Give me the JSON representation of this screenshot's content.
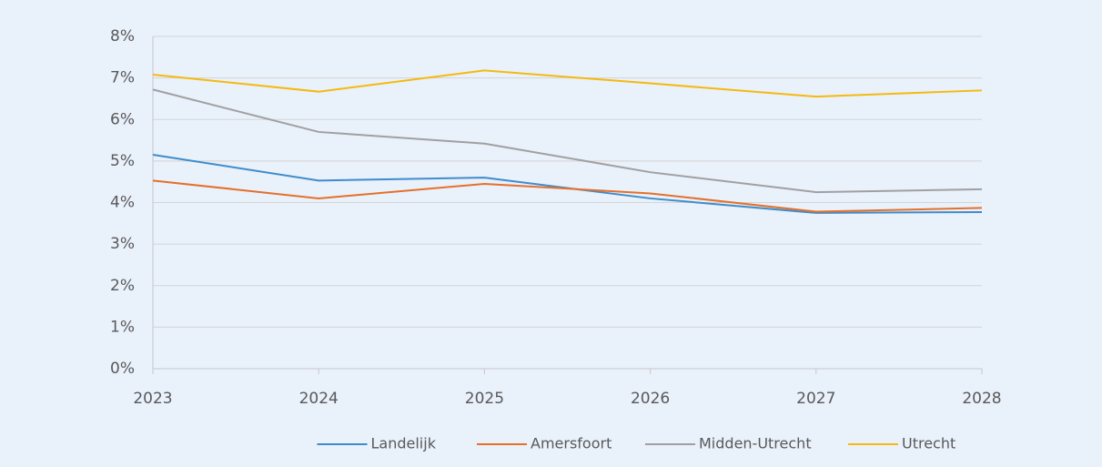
{
  "chart_data": {
    "type": "line",
    "x": [
      2023,
      2024,
      2025,
      2026,
      2027,
      2028
    ],
    "xlim": [
      2023,
      2028
    ],
    "xticks": [
      2023,
      2024,
      2025,
      2026,
      2027,
      2028
    ],
    "ylim": [
      0,
      8
    ],
    "yticks": [
      {
        "value": 0,
        "label": "0%"
      },
      {
        "value": 1,
        "label": "1%"
      },
      {
        "value": 2,
        "label": "2%"
      },
      {
        "value": 3,
        "label": "3%"
      },
      {
        "value": 4,
        "label": "4%"
      },
      {
        "value": 5,
        "label": "5%"
      },
      {
        "value": 6,
        "label": "6%"
      },
      {
        "value": 7,
        "label": "7%"
      },
      {
        "value": 8,
        "label": "8%"
      }
    ],
    "grid": true,
    "legend": "bottom",
    "series": [
      {
        "name": "Landelijk",
        "color": "#3f8ccb",
        "values": [
          5.15,
          4.53,
          4.6,
          4.1,
          3.75,
          3.77
        ]
      },
      {
        "name": "Amersfoort",
        "color": "#e4702a",
        "values": [
          4.53,
          4.1,
          4.45,
          4.22,
          3.78,
          3.87
        ]
      },
      {
        "name": "Midden-Utrecht",
        "color": "#a0a0a0",
        "values": [
          6.72,
          5.7,
          5.42,
          4.73,
          4.25,
          4.32
        ]
      },
      {
        "name": "Utrecht",
        "color": "#f5b90f",
        "values": [
          7.08,
          6.67,
          7.18,
          6.87,
          6.55,
          6.7
        ]
      }
    ]
  }
}
